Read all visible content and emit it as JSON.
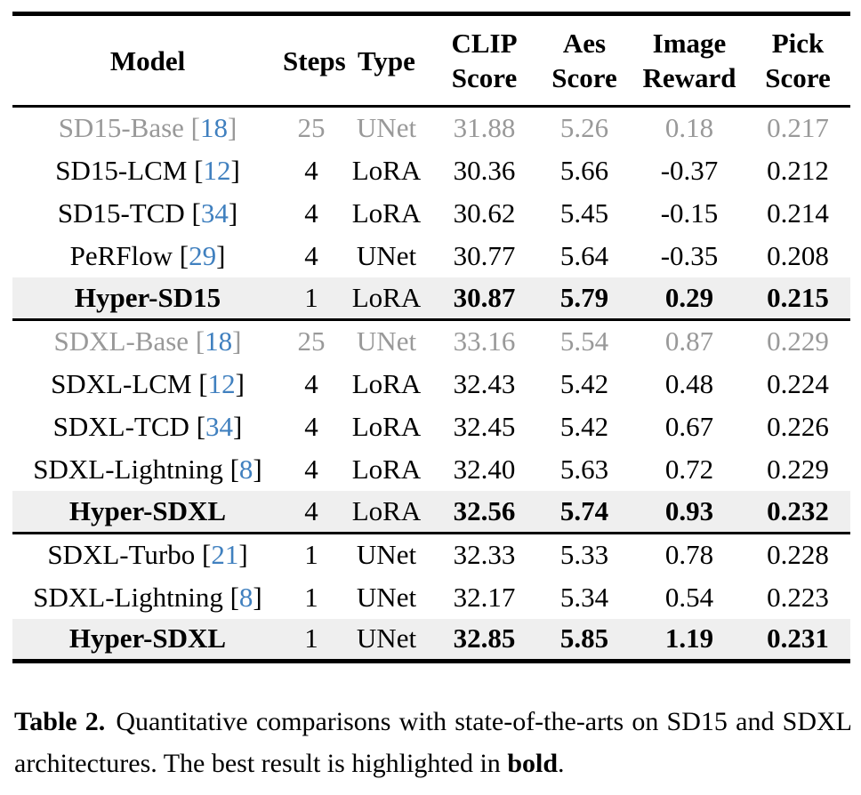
{
  "colors": {
    "citation_blue": "#4080bf",
    "muted_gray": "#999999",
    "highlight_bg": "#efefef",
    "rule_black": "#000000"
  },
  "table": {
    "headers": [
      {
        "label": "Model"
      },
      {
        "label": "Steps"
      },
      {
        "label": "Type"
      },
      {
        "label": "CLIP\nScore"
      },
      {
        "label": "Aes\nScore"
      },
      {
        "label": "Image\nReward"
      },
      {
        "label": "Pick\nScore"
      }
    ],
    "sections": [
      {
        "name": "sd15",
        "rows": [
          {
            "model": "SD15-Base",
            "cite": "18",
            "muted": true,
            "steps": "25",
            "type": "UNet",
            "scores": [
              "31.88",
              "5.26",
              "0.18",
              "0.217"
            ]
          },
          {
            "model": "SD15-LCM",
            "cite": "12",
            "steps": "4",
            "type": "LoRA",
            "scores": [
              "30.36",
              "5.66",
              "-0.37",
              "0.212"
            ]
          },
          {
            "model": "SD15-TCD",
            "cite": "34",
            "steps": "4",
            "type": "LoRA",
            "scores": [
              "30.62",
              "5.45",
              "-0.15",
              "0.214"
            ]
          },
          {
            "model": "PeRFlow",
            "cite": "29",
            "steps": "4",
            "type": "UNet",
            "scores": [
              "30.77",
              "5.64",
              "-0.35",
              "0.208"
            ]
          },
          {
            "model": "Hyper-SD15",
            "bold": true,
            "highlight": true,
            "bold_scores": true,
            "steps": "1",
            "type": "LoRA",
            "scores": [
              "30.87",
              "5.79",
              "0.29",
              "0.215"
            ]
          }
        ]
      },
      {
        "name": "sdxl-multistep",
        "rows": [
          {
            "model": "SDXL-Base",
            "cite": "18",
            "muted": true,
            "steps": "25",
            "type": "UNet",
            "scores": [
              "33.16",
              "5.54",
              "0.87",
              "0.229"
            ]
          },
          {
            "model": "SDXL-LCM",
            "cite": "12",
            "steps": "4",
            "type": "LoRA",
            "scores": [
              "32.43",
              "5.42",
              "0.48",
              "0.224"
            ]
          },
          {
            "model": "SDXL-TCD",
            "cite": "34",
            "steps": "4",
            "type": "LoRA",
            "scores": [
              "32.45",
              "5.42",
              "0.67",
              "0.226"
            ]
          },
          {
            "model": "SDXL-Lightning",
            "cite": "8",
            "steps": "4",
            "type": "LoRA",
            "scores": [
              "32.40",
              "5.63",
              "0.72",
              "0.229"
            ]
          },
          {
            "model": "Hyper-SDXL",
            "bold": true,
            "highlight": true,
            "bold_scores": true,
            "steps": "4",
            "type": "LoRA",
            "scores": [
              "32.56",
              "5.74",
              "0.93",
              "0.232"
            ]
          }
        ]
      },
      {
        "name": "sdxl-onestep",
        "rows": [
          {
            "model": "SDXL-Turbo",
            "cite": "21",
            "steps": "1",
            "type": "UNet",
            "scores": [
              "32.33",
              "5.33",
              "0.78",
              "0.228"
            ]
          },
          {
            "model": "SDXL-Lightning",
            "cite": "8",
            "steps": "1",
            "type": "UNet",
            "scores": [
              "32.17",
              "5.34",
              "0.54",
              "0.223"
            ]
          },
          {
            "model": "Hyper-SDXL",
            "bold": true,
            "highlight": true,
            "bold_scores": true,
            "steps": "1",
            "type": "UNet",
            "scores": [
              "32.85",
              "5.85",
              "1.19",
              "0.231"
            ]
          }
        ]
      }
    ]
  },
  "caption": {
    "label": "Table 2.",
    "text": "Quantitative comparisons with state-of-the-arts on SD15 and SDXL architectures. The best result is highlighted in ",
    "bold_word": "bold",
    "suffix": "."
  }
}
